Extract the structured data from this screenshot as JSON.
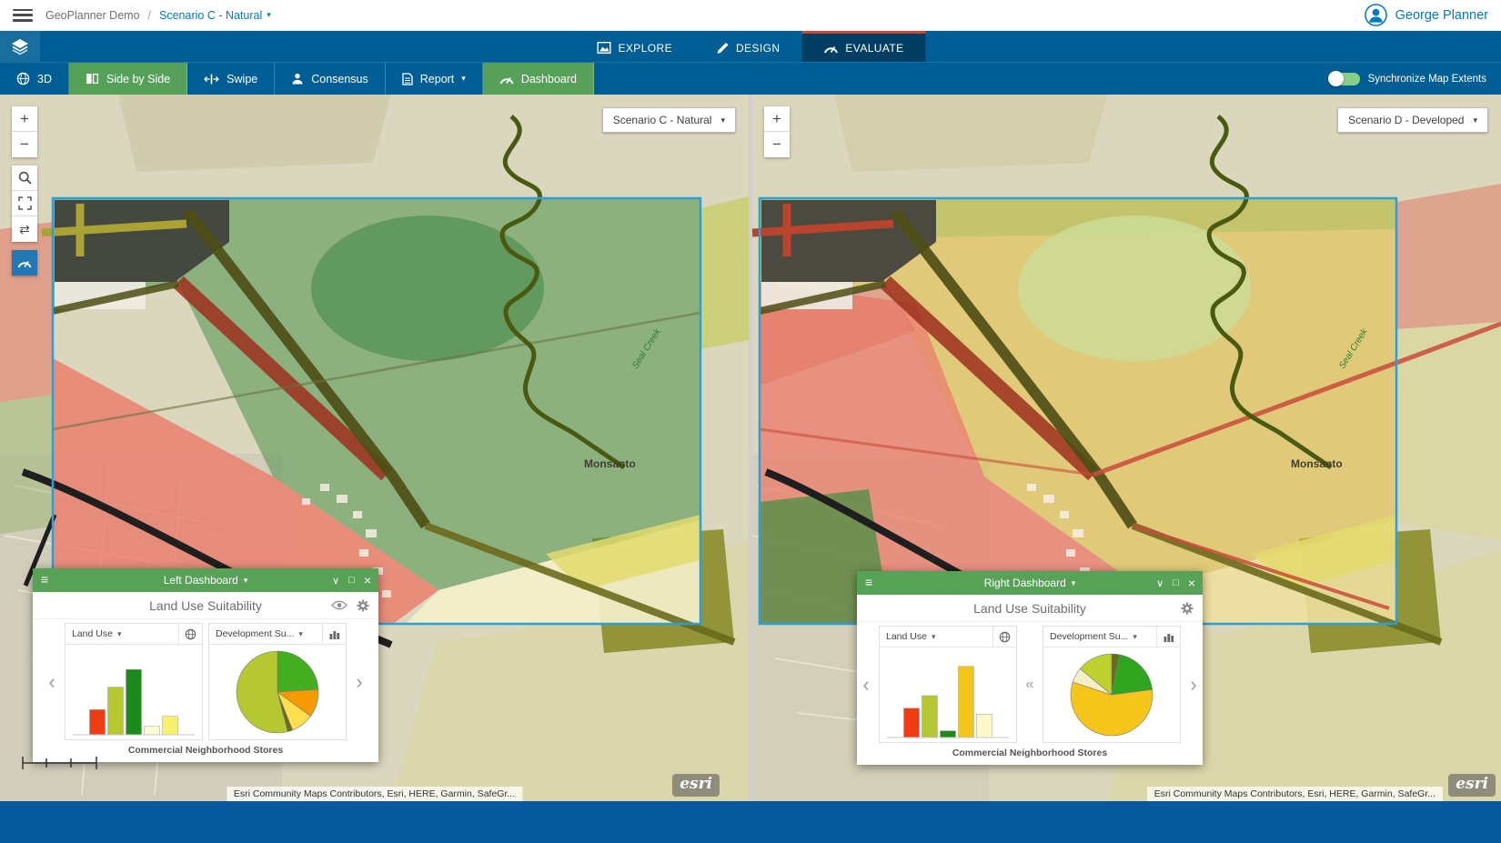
{
  "colors": {
    "nav_blue": "#005e95",
    "active_tab_blue": "#003f63",
    "tab_accent_red": "#bf4a38",
    "active_green": "#56a05a",
    "link_blue": "#0079c1",
    "project_border_blue": "#2b9fd8",
    "suitable_green": "#4b9149",
    "unsuitable_red": "#eb8070",
    "moderate_yellow": "#e3c14c"
  },
  "icons": {
    "caret_down": "▾",
    "close": "×",
    "collapse": "∨",
    "maximize": "□",
    "menu": "≡",
    "swap_tool": "⇄",
    "carousel_prev": "‹",
    "carousel_next": "›",
    "carousel_collapse": "«",
    "zoom_in": "+",
    "zoom_out": "−"
  },
  "header": {
    "app_title": "GeoPlanner Demo",
    "separator": "/",
    "scenario_label": "Scenario C - Natural",
    "user_name": "George Planner"
  },
  "nav": {
    "tabs": [
      {
        "label": "EXPLORE"
      },
      {
        "label": "DESIGN"
      },
      {
        "label": "EVALUATE"
      }
    ]
  },
  "toolbar": {
    "btn_3d": "3D",
    "btn_side_by_side": "Side by Side",
    "btn_swipe": "Swipe",
    "btn_consensus": "Consensus",
    "btn_report": "Report",
    "btn_dashboard": "Dashboard",
    "sync_label": "Synchronize Map Extents"
  },
  "left_map": {
    "scenario": "Scenario C - Natural",
    "town_label": "Monsanto",
    "creek_label": "Seal Creek",
    "attribution": "Esri Community Maps Contributors, Esri, HERE, Garmin, SafeGr...",
    "logo": "esri"
  },
  "right_map": {
    "scenario": "Scenario D - Developed",
    "town_label": "Monsanto",
    "creek_label": "Seal Creek",
    "attribution": "Esri Community Maps Contributors, Esri, HERE, Garmin, SafeGr...",
    "logo": "esri"
  },
  "left_dashboard": {
    "title": "Left Dashboard",
    "subtitle": "Land Use Suitability",
    "caption": "Commercial Neighborhood Stores"
  },
  "right_dashboard": {
    "title": "Right Dashboard",
    "subtitle": "Land Use Suitability",
    "caption": "Commercial Neighborhood Stores"
  },
  "chart_data": [
    {
      "id": "left-bar",
      "type": "bar",
      "widget_title": "Land Use",
      "caption": "Commercial Neighborhood Stores",
      "values": [
        30,
        57,
        78,
        10,
        22
      ],
      "colors": [
        "#f03c14",
        "#b5c832",
        "#1d8a1d",
        "#fdfbd2",
        "#f7ef6e"
      ],
      "ylim": [
        0,
        100
      ]
    },
    {
      "id": "left-pie",
      "type": "pie",
      "widget_title": "Development Su...",
      "values": [
        24,
        11,
        9,
        2,
        54
      ],
      "colors": [
        "#43ae1f",
        "#f59a00",
        "#ffdf4d",
        "#6b6b1c",
        "#b5c832"
      ]
    },
    {
      "id": "right-bar",
      "type": "bar",
      "widget_title": "Land Use",
      "caption": "Commercial Neighborhood Stores",
      "values": [
        35,
        50,
        8,
        85,
        28
      ],
      "colors": [
        "#f03c14",
        "#b5c832",
        "#1d8a1d",
        "#f6c51b",
        "#fdf7c9"
      ],
      "ylim": [
        0,
        100
      ]
    },
    {
      "id": "right-pie",
      "type": "pie",
      "widget_title": "Development Su...",
      "values": [
        3,
        20,
        57,
        6,
        14
      ],
      "colors": [
        "#6b6b1c",
        "#2fa51f",
        "#f6c51b",
        "#f4efc4",
        "#bdd22e"
      ]
    }
  ]
}
